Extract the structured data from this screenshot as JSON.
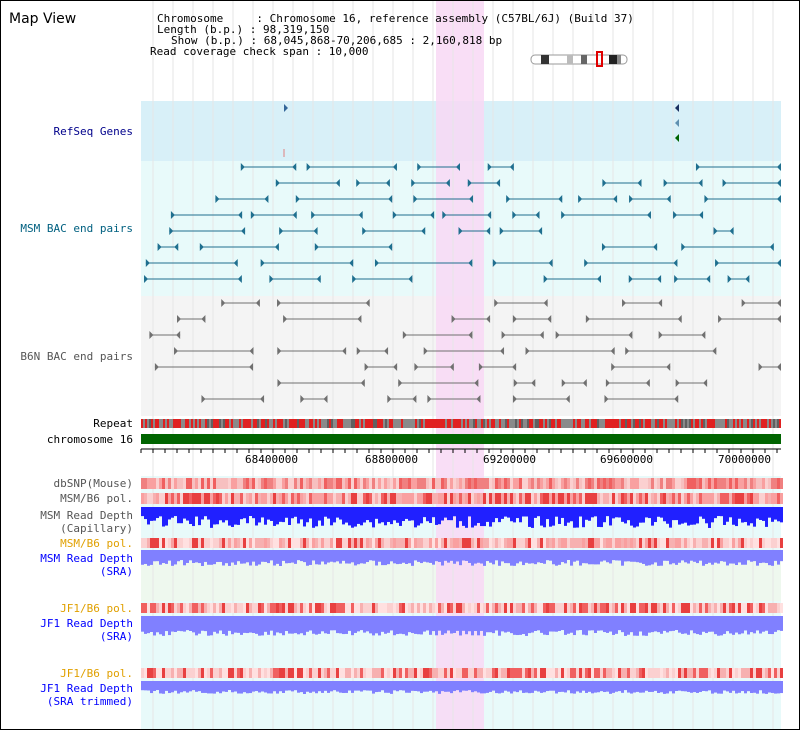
{
  "title": "Map View",
  "info": {
    "chromosome_label": "Chromosome     : Chromosome 16, reference assembly (C57BL/6J) (Build 37)",
    "length_label": "Length (b.p.) : 98,319,150",
    "show_label": "Show (b.p.) : 68,045,868-70,206,685 : 2,160,818 bp",
    "coverage_label": "Read coverage check span : 10,000"
  },
  "tracks": {
    "refseq": "RefSeq Genes",
    "msm_bac": "MSM BAC end pairs",
    "b6n_bac": "B6N BAC end pairs",
    "repeat": "Repeat",
    "chrom": "chromosome 16",
    "dbsnp": "dbSNP(Mouse)",
    "msm_b6_pol": "MSM/B6 pol.",
    "msm_depth_cap": "MSM Read Depth\n(Capillary)",
    "msm_b6_pol2": "MSM/B6 pol.",
    "msm_depth_sra": "MSM Read Depth\n(SRA)",
    "jf1_b6_pol": "JF1/B6 pol.",
    "jf1_depth_sra": "JF1 Read Depth\n(SRA)",
    "jf1_b6_pol2": "JF1/B6 pol.",
    "jf1_depth_trim": "JF1 Read Depth\n(SRA trimmed)"
  },
  "axis": {
    "ticks": [
      "68400000",
      "68800000",
      "69200000",
      "69600000",
      "70000000"
    ]
  },
  "colors": {
    "highlight": "#f8d8f4",
    "refseq_bg": "#d8f0f8",
    "bac_bg": "#e8fafa",
    "chrom_green": "#006400",
    "depth_blue": "#2020ff",
    "depth_lavender": "#8080ff",
    "pol_red": "#f08080"
  }
}
